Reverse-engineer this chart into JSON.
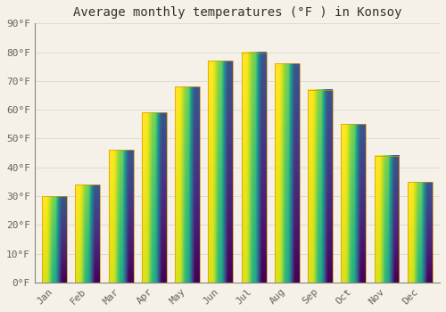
{
  "title": "Average monthly temperatures (°F ) in Konsoy",
  "months": [
    "Jan",
    "Feb",
    "Mar",
    "Apr",
    "May",
    "Jun",
    "Jul",
    "Aug",
    "Sep",
    "Oct",
    "Nov",
    "Dec"
  ],
  "values": [
    30,
    34,
    46,
    59,
    68,
    77,
    80,
    76,
    67,
    55,
    44,
    35
  ],
  "bar_color_top": "#FFCC44",
  "bar_color_bottom": "#F0A000",
  "bar_edge_color": "#E09000",
  "background_color": "#F5F0E8",
  "plot_bg_color": "#F5F0E8",
  "grid_color": "#DDDDCC",
  "ylim": [
    0,
    90
  ],
  "yticks": [
    0,
    10,
    20,
    30,
    40,
    50,
    60,
    70,
    80,
    90
  ],
  "ytick_labels": [
    "0°F",
    "10°F",
    "20°F",
    "30°F",
    "40°F",
    "50°F",
    "60°F",
    "70°F",
    "80°F",
    "90°F"
  ],
  "title_fontsize": 10,
  "tick_fontsize": 8,
  "tick_color": "#666655",
  "spine_color": "#888877",
  "bar_width": 0.75
}
